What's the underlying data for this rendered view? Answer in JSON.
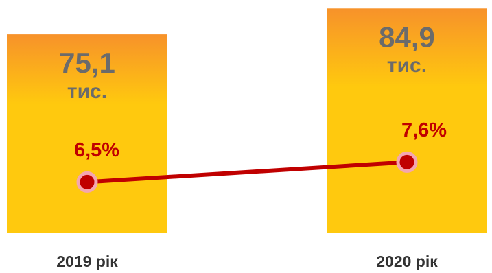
{
  "chart_data": {
    "type": "bar",
    "categories": [
      "2019 рік",
      "2020 рік"
    ],
    "values": [
      75.1,
      84.9
    ],
    "value_labels": [
      "75,1",
      "84,9"
    ],
    "unit": "тис.",
    "color": "#ffc90e",
    "top_color": "#f7922a",
    "line": {
      "values": [
        6.5,
        7.6
      ],
      "value_labels": [
        "6,5%",
        "7,6%"
      ],
      "color": "#c00000",
      "marker_edge": "#f4a6b0"
    }
  }
}
